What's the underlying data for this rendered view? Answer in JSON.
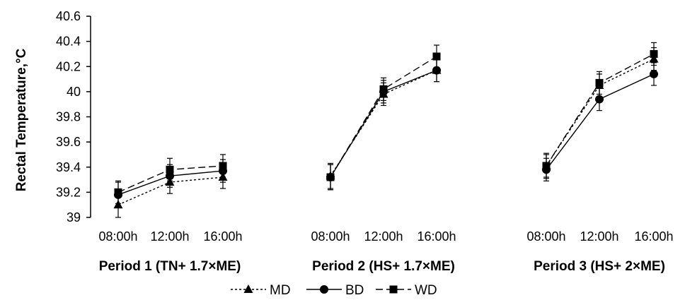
{
  "chart_data": {
    "type": "line",
    "title": "",
    "xlabel": "",
    "ylabel": "Rectal Temperature,°C",
    "ylim": [
      39,
      40.6
    ],
    "yticks": [
      "39",
      "39.2",
      "39.4",
      "39.6",
      "39.8",
      "40",
      "40.2",
      "40.4",
      "40.6"
    ],
    "grid": false,
    "legend": "bottom",
    "groups": [
      {
        "label": "Period 1 (TN+ 1.7×ME)",
        "times": [
          "08:00h",
          "12:00h",
          "16:00h"
        ]
      },
      {
        "label": "Period 2 (HS+ 1.7×ME)",
        "times": [
          "08:00h",
          "12:00h",
          "16:00h"
        ]
      },
      {
        "label": "Period 3 (HS+ 2×ME)",
        "times": [
          "08:00h",
          "12:00h",
          "16:00h"
        ]
      }
    ],
    "series": [
      {
        "name": "MD",
        "marker": "triangle",
        "dash": "dotted",
        "color": "#000000",
        "values": [
          [
            39.1,
            39.28,
            39.32
          ],
          [
            39.33,
            39.98,
            40.17
          ],
          [
            39.41,
            40.05,
            40.26
          ]
        ],
        "errors": [
          [
            0.1,
            0.09,
            0.09
          ],
          [
            0.1,
            0.09,
            0.09
          ],
          [
            0.1,
            0.09,
            0.09
          ]
        ]
      },
      {
        "name": "BD",
        "marker": "circle",
        "dash": "solid",
        "color": "#000000",
        "values": [
          [
            39.18,
            39.33,
            39.37
          ],
          [
            39.32,
            40.0,
            40.17
          ],
          [
            39.38,
            39.94,
            40.14
          ]
        ],
        "errors": [
          [
            0.1,
            0.09,
            0.09
          ],
          [
            0.1,
            0.09,
            0.09
          ],
          [
            0.09,
            0.09,
            0.09
          ]
        ]
      },
      {
        "name": "WD",
        "marker": "square",
        "dash": "dashed",
        "color": "#000000",
        "values": [
          [
            39.2,
            39.38,
            39.41
          ],
          [
            39.32,
            40.02,
            40.28
          ],
          [
            39.41,
            40.07,
            40.3
          ]
        ],
        "errors": [
          [
            0.09,
            0.09,
            0.09
          ],
          [
            0.1,
            0.09,
            0.09
          ],
          [
            0.09,
            0.09,
            0.09
          ]
        ]
      }
    ]
  }
}
